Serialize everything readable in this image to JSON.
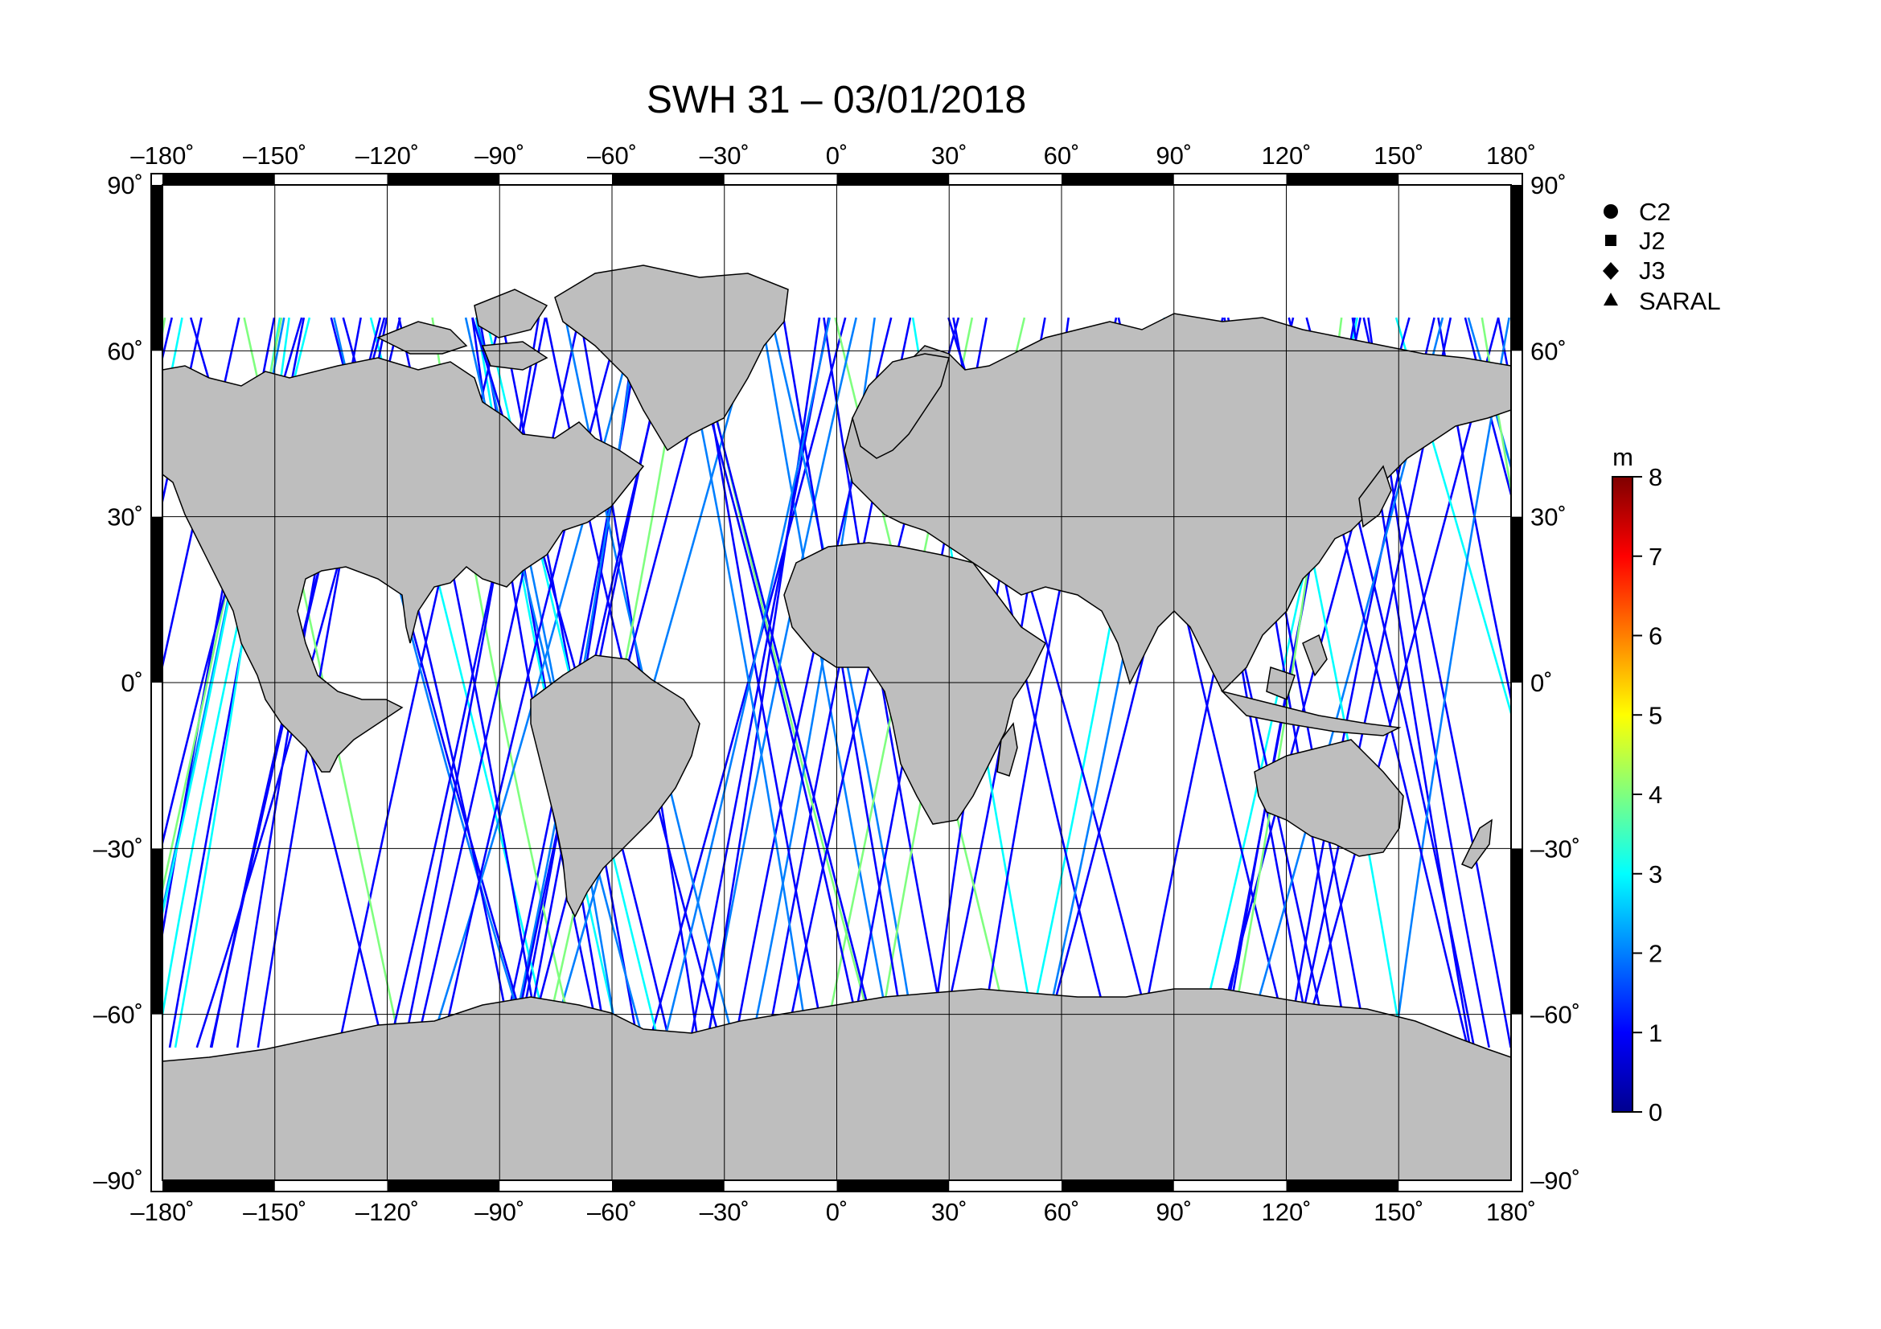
{
  "title": "SWH 31 – 03/01/2018",
  "map": {
    "lon_range": [
      -180,
      180
    ],
    "lat_range": [
      -90,
      90
    ],
    "lon_ticks": [
      {
        "value": -180,
        "label": "–180˚"
      },
      {
        "value": -150,
        "label": "–150˚"
      },
      {
        "value": -120,
        "label": "–120˚"
      },
      {
        "value": -90,
        "label": "–90˚"
      },
      {
        "value": -60,
        "label": "–60˚"
      },
      {
        "value": -30,
        "label": "–30˚"
      },
      {
        "value": 0,
        "label": "0˚"
      },
      {
        "value": 30,
        "label": "30˚"
      },
      {
        "value": 60,
        "label": "60˚"
      },
      {
        "value": 90,
        "label": "90˚"
      },
      {
        "value": 120,
        "label": "120˚"
      },
      {
        "value": 150,
        "label": "150˚"
      },
      {
        "value": 180,
        "label": "180˚"
      }
    ],
    "lat_ticks": [
      {
        "value": 90,
        "label": "90˚"
      },
      {
        "value": 60,
        "label": "60˚"
      },
      {
        "value": 30,
        "label": "30˚"
      },
      {
        "value": 0,
        "label": "0˚"
      },
      {
        "value": -30,
        "label": "–30˚"
      },
      {
        "value": -60,
        "label": "–60˚"
      },
      {
        "value": -90,
        "label": "–90˚"
      }
    ],
    "grid": true,
    "land_color": "#bebebe",
    "ocean_color": "#ffffff"
  },
  "legend": {
    "placement": "top-right",
    "items": [
      {
        "label": "C2",
        "symbol": "circle"
      },
      {
        "label": "J2",
        "symbol": "square"
      },
      {
        "label": "J3",
        "symbol": "diamond"
      },
      {
        "label": "SARAL",
        "symbol": "triangle"
      }
    ]
  },
  "colorbar": {
    "unit": "m",
    "min": 0,
    "max": 8,
    "ticks": [
      "0",
      "1",
      "2",
      "3",
      "4",
      "5",
      "6",
      "7",
      "8"
    ],
    "colors": [
      "#00008f",
      "#0000ff",
      "#007fff",
      "#00ffff",
      "#7fff7f",
      "#ffff00",
      "#ff7f00",
      "#ff0000",
      "#7f0000"
    ]
  }
}
